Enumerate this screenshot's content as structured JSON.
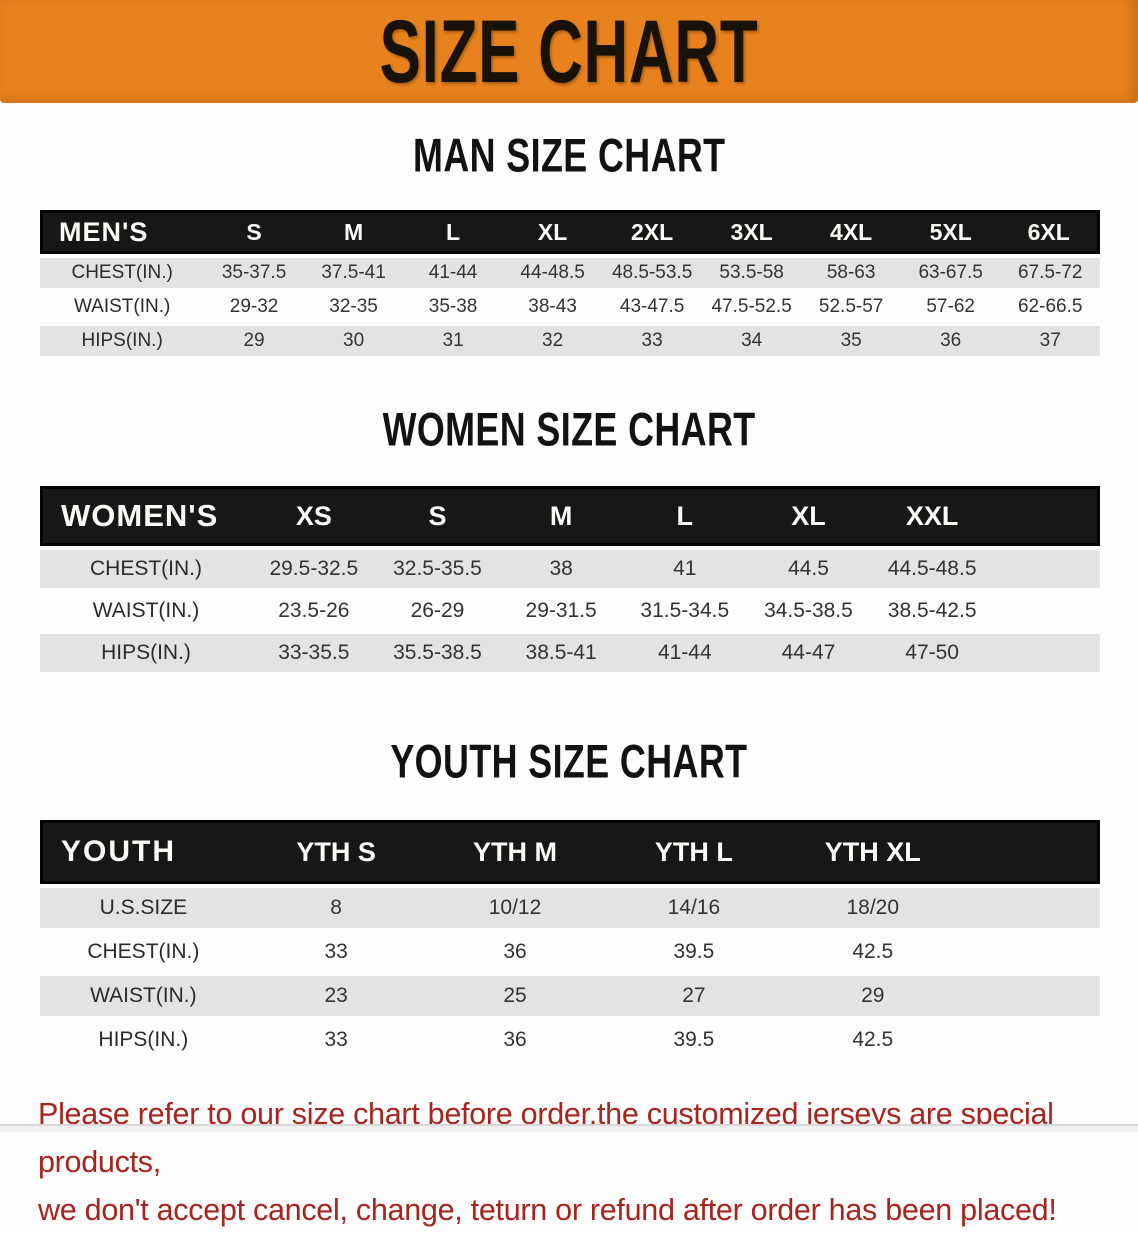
{
  "banner": {
    "title": "SIZE CHART",
    "bg_color": "#E7821E",
    "text_color": "#181208"
  },
  "sections": [
    {
      "title": "MAN SIZE CHART",
      "header_label": "MEN'S",
      "columns": [
        "S",
        "M",
        "L",
        "XL",
        "2XL",
        "3XL",
        "4XL",
        "5XL",
        "6XL"
      ],
      "has_spacer": false,
      "rows": [
        {
          "label": "CHEST(IN.)",
          "values": [
            "35-37.5",
            "37.5-41",
            "41-44",
            "44-48.5",
            "48.5-53.5",
            "53.5-58",
            "58-63",
            "63-67.5",
            "67.5-72"
          ]
        },
        {
          "label": "WAIST(IN.)",
          "values": [
            "29-32",
            "32-35",
            "35-38",
            "38-43",
            "43-47.5",
            "47.5-52.5",
            "52.5-57",
            "57-62",
            "62-66.5"
          ]
        },
        {
          "label": "HIPS(IN.)",
          "values": [
            "29",
            "30",
            "31",
            "32",
            "33",
            "34",
            "35",
            "36",
            "37"
          ]
        }
      ]
    },
    {
      "title": "WOMEN SIZE CHART",
      "header_label": "WOMEN'S",
      "columns": [
        "XS",
        "S",
        "M",
        "L",
        "XL",
        "XXL"
      ],
      "has_spacer": true,
      "rows": [
        {
          "label": "CHEST(IN.)",
          "values": [
            "29.5-32.5",
            "32.5-35.5",
            "38",
            "41",
            "44.5",
            "44.5-48.5"
          ]
        },
        {
          "label": "WAIST(IN.)",
          "values": [
            "23.5-26",
            "26-29",
            "29-31.5",
            "31.5-34.5",
            "34.5-38.5",
            "38.5-42.5"
          ]
        },
        {
          "label": "HIPS(IN.)",
          "values": [
            "33-35.5",
            "35.5-38.5",
            "38.5-41",
            "41-44",
            "44-47",
            "47-50"
          ]
        }
      ]
    },
    {
      "title": "YOUTH SIZE CHART",
      "header_label": "YOUTH",
      "columns": [
        "YTH S",
        "YTH M",
        "YTH L",
        "YTH XL"
      ],
      "has_spacer": true,
      "rows": [
        {
          "label": "U.S.SIZE",
          "values": [
            "8",
            "10/12",
            "14/16",
            "18/20"
          ]
        },
        {
          "label": "CHEST(IN.)",
          "values": [
            "33",
            "36",
            "39.5",
            "42.5"
          ]
        },
        {
          "label": "WAIST(IN.)",
          "values": [
            "23",
            "25",
            "27",
            "29"
          ]
        },
        {
          "label": "HIPS(IN.)",
          "values": [
            "33",
            "36",
            "39.5",
            "42.5"
          ]
        }
      ]
    }
  ],
  "footer": {
    "line1": "Please refer to our size chart before order,the customized jerseys are special products,",
    "line2": "we don't accept cancel, change, teturn or refund after order has been placed!",
    "text_color": "#A8241C"
  }
}
